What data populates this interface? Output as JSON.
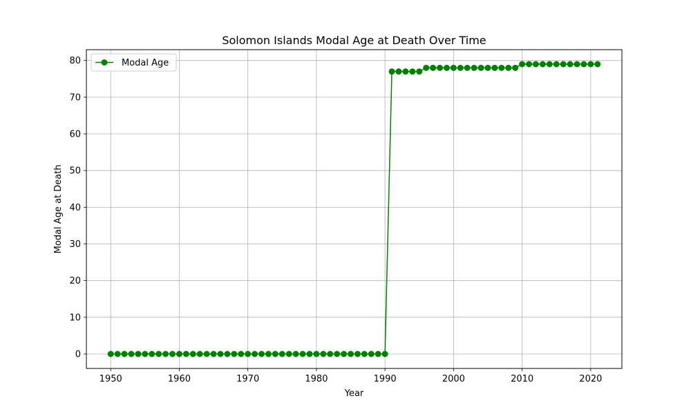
{
  "chart_data": {
    "type": "line",
    "title": "Solomon Islands Modal Age at Death Over Time",
    "xlabel": "Year",
    "ylabel": "Modal Age at Death",
    "xlim": [
      1946.45,
      2024.55
    ],
    "ylim": [
      -3.95,
      82.95
    ],
    "xticks": [
      1950,
      1960,
      1970,
      1980,
      1990,
      2000,
      2010,
      2020
    ],
    "yticks": [
      0,
      10,
      20,
      30,
      40,
      50,
      60,
      70,
      80
    ],
    "grid": true,
    "legend_position": "top-left",
    "series": [
      {
        "name": "Modal Age",
        "color": "#008000",
        "marker": "circle",
        "x": [
          1950,
          1951,
          1952,
          1953,
          1954,
          1955,
          1956,
          1957,
          1958,
          1959,
          1960,
          1961,
          1962,
          1963,
          1964,
          1965,
          1966,
          1967,
          1968,
          1969,
          1970,
          1971,
          1972,
          1973,
          1974,
          1975,
          1976,
          1977,
          1978,
          1979,
          1980,
          1981,
          1982,
          1983,
          1984,
          1985,
          1986,
          1987,
          1988,
          1989,
          1990,
          1991,
          1992,
          1993,
          1994,
          1995,
          1996,
          1997,
          1998,
          1999,
          2000,
          2001,
          2002,
          2003,
          2004,
          2005,
          2006,
          2007,
          2008,
          2009,
          2010,
          2011,
          2012,
          2013,
          2014,
          2015,
          2016,
          2017,
          2018,
          2019,
          2020,
          2021
        ],
        "y": [
          0,
          0,
          0,
          0,
          0,
          0,
          0,
          0,
          0,
          0,
          0,
          0,
          0,
          0,
          0,
          0,
          0,
          0,
          0,
          0,
          0,
          0,
          0,
          0,
          0,
          0,
          0,
          0,
          0,
          0,
          0,
          0,
          0,
          0,
          0,
          0,
          0,
          0,
          0,
          0,
          0,
          77,
          77,
          77,
          77,
          77,
          78,
          78,
          78,
          78,
          78,
          78,
          78,
          78,
          78,
          78,
          78,
          78,
          78,
          78,
          79,
          79,
          79,
          79,
          79,
          79,
          79,
          79,
          79,
          79,
          79,
          79
        ]
      }
    ]
  }
}
